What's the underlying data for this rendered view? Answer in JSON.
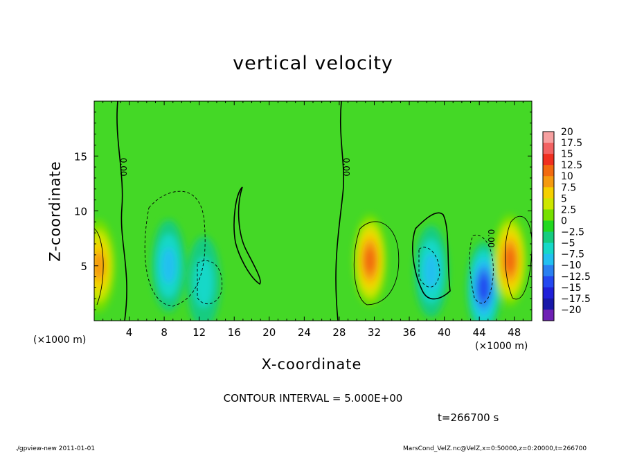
{
  "page": {
    "title": "vertical velocity",
    "contour_interval": "CONTOUR INTERVAL = 5.000E+00",
    "time_label": "t=266700 s",
    "footer_left": "./gpview-new   2011-01-01",
    "footer_right": "MarsCond_VelZ.nc@VelZ,x=0:50000,z=0:20000,t=266700"
  },
  "chart_data": {
    "type": "heatmap",
    "title": "vertical velocity",
    "xlabel": "X-coordinate",
    "ylabel": "Z-coordinate",
    "x_unit": "(×1000 m)",
    "y_unit": "(×1000 m)",
    "xlim": [
      0,
      50
    ],
    "ylim": [
      0,
      20
    ],
    "x_ticks": [
      4,
      8,
      12,
      16,
      20,
      24,
      28,
      32,
      36,
      40,
      44,
      48
    ],
    "y_ticks": [
      5,
      10,
      15
    ],
    "contour_interval": 5,
    "colorbar": {
      "levels": [
        "20",
        "17.5",
        "15",
        "12.5",
        "10",
        "7.5",
        "5",
        "2.5",
        "0",
        "-2.5",
        "-5",
        "-7.5",
        "-10",
        "-12.5",
        "-15",
        "-17.5",
        "-20"
      ],
      "colors": [
        "#f7a0a0",
        "#f26262",
        "#f03020",
        "#f26a10",
        "#f59a10",
        "#f5d000",
        "#cde600",
        "#76e000",
        "#22d820",
        "#15cc80",
        "#16d8c8",
        "#22c0f0",
        "#2a80f0",
        "#2448f0",
        "#2020d8",
        "#1818a8",
        "#6e20b4"
      ]
    },
    "features": [
      {
        "x": 0.5,
        "z": 5.0,
        "w": 10,
        "type": "updraft"
      },
      {
        "x": 8.5,
        "z": 5.0,
        "w": -7.5,
        "type": "downdraft"
      },
      {
        "x": 12.5,
        "z": 3.5,
        "w": -5,
        "type": "downdraft"
      },
      {
        "x": 31.5,
        "z": 5.5,
        "w": 12,
        "type": "updraft"
      },
      {
        "x": 38.5,
        "z": 4.5,
        "w": -7.5,
        "type": "downdraft"
      },
      {
        "x": 44.5,
        "z": 3.0,
        "w": -12,
        "type": "downdraft"
      },
      {
        "x": 47.5,
        "z": 5.5,
        "w": 12,
        "type": "updraft"
      }
    ],
    "zero_contour_labels": [
      {
        "x": 3,
        "z": 14,
        "text": "0.00"
      },
      {
        "x": 28.5,
        "z": 14,
        "text": "0.00"
      },
      {
        "x": 45,
        "z": 7.5,
        "text": "0.00"
      }
    ]
  }
}
